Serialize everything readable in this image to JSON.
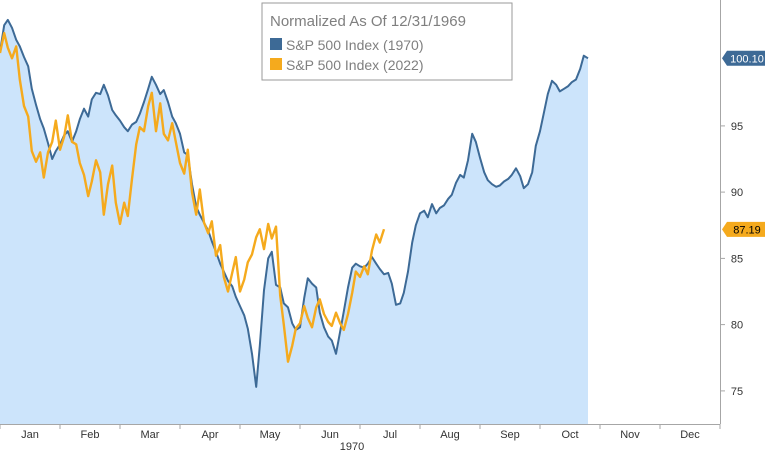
{
  "chart_data": {
    "type": "line",
    "title": "",
    "xlabel": "1970",
    "ylabel": "",
    "x_ticks": [
      "Jan",
      "Feb",
      "Mar",
      "Apr",
      "May",
      "Jun",
      "Jul",
      "Aug",
      "Sep",
      "Oct",
      "Nov",
      "Dec"
    ],
    "y_ticks": [
      75,
      80,
      85,
      90,
      95
    ],
    "xlim": [
      1,
      13
    ],
    "ylim": [
      72.5,
      104.5
    ],
    "grid": false,
    "legend": {
      "title": "Normalized As Of 12/31/1969",
      "placement": "top-center"
    },
    "series": [
      {
        "name": "S&P 500 Index (1970)",
        "color": "#3d6a96",
        "fill": "#cce4fb",
        "end_label": "100.10",
        "points": [
          [
            1.0,
            100.6
          ],
          [
            1.07,
            102.6
          ],
          [
            1.13,
            103.0
          ],
          [
            1.2,
            102.4
          ],
          [
            1.27,
            101.5
          ],
          [
            1.33,
            101.0
          ],
          [
            1.4,
            100.2
          ],
          [
            1.47,
            99.5
          ],
          [
            1.53,
            97.8
          ],
          [
            1.6,
            96.6
          ],
          [
            1.67,
            95.5
          ],
          [
            1.73,
            94.8
          ],
          [
            1.8,
            93.7
          ],
          [
            1.87,
            92.5
          ],
          [
            1.93,
            93.1
          ],
          [
            2.0,
            93.6
          ],
          [
            2.07,
            94.3
          ],
          [
            2.13,
            94.6
          ],
          [
            2.2,
            93.8
          ],
          [
            2.27,
            94.6
          ],
          [
            2.33,
            95.5
          ],
          [
            2.4,
            96.3
          ],
          [
            2.47,
            95.7
          ],
          [
            2.53,
            97.0
          ],
          [
            2.6,
            97.5
          ],
          [
            2.67,
            97.4
          ],
          [
            2.73,
            98.1
          ],
          [
            2.8,
            97.3
          ],
          [
            2.87,
            96.2
          ],
          [
            2.93,
            95.8
          ],
          [
            3.0,
            95.4
          ],
          [
            3.07,
            94.9
          ],
          [
            3.13,
            94.6
          ],
          [
            3.2,
            95.1
          ],
          [
            3.27,
            95.3
          ],
          [
            3.33,
            95.9
          ],
          [
            3.4,
            96.8
          ],
          [
            3.47,
            97.8
          ],
          [
            3.53,
            98.7
          ],
          [
            3.6,
            98.1
          ],
          [
            3.67,
            97.4
          ],
          [
            3.73,
            97.7
          ],
          [
            3.8,
            96.8
          ],
          [
            3.87,
            95.7
          ],
          [
            3.93,
            95.2
          ],
          [
            4.0,
            94.4
          ],
          [
            4.07,
            93.0
          ],
          [
            4.13,
            92.8
          ],
          [
            4.2,
            90.6
          ],
          [
            4.27,
            88.9
          ],
          [
            4.33,
            88.3
          ],
          [
            4.4,
            87.7
          ],
          [
            4.47,
            87.1
          ],
          [
            4.53,
            86.3
          ],
          [
            4.6,
            85.5
          ],
          [
            4.67,
            84.6
          ],
          [
            4.73,
            84.0
          ],
          [
            4.8,
            83.3
          ],
          [
            4.87,
            82.9
          ],
          [
            4.93,
            82.1
          ],
          [
            5.0,
            81.4
          ],
          [
            5.07,
            80.7
          ],
          [
            5.13,
            79.7
          ],
          [
            5.2,
            77.8
          ],
          [
            5.27,
            75.3
          ],
          [
            5.33,
            78.4
          ],
          [
            5.4,
            82.6
          ],
          [
            5.47,
            85.0
          ],
          [
            5.53,
            85.5
          ],
          [
            5.6,
            83.0
          ],
          [
            5.67,
            82.8
          ],
          [
            5.73,
            81.6
          ],
          [
            5.8,
            81.3
          ],
          [
            5.87,
            80.1
          ],
          [
            5.93,
            79.6
          ],
          [
            6.0,
            79.8
          ],
          [
            6.07,
            82.0
          ],
          [
            6.13,
            83.5
          ],
          [
            6.2,
            83.1
          ],
          [
            6.27,
            82.8
          ],
          [
            6.33,
            80.9
          ],
          [
            6.4,
            79.8
          ],
          [
            6.47,
            79.1
          ],
          [
            6.53,
            78.8
          ],
          [
            6.6,
            77.8
          ],
          [
            6.67,
            79.5
          ],
          [
            6.73,
            81.0
          ],
          [
            6.8,
            82.8
          ],
          [
            6.87,
            84.3
          ],
          [
            6.93,
            84.6
          ],
          [
            7.0,
            84.4
          ],
          [
            7.07,
            84.3
          ],
          [
            7.13,
            84.6
          ],
          [
            7.2,
            85.1
          ],
          [
            7.27,
            84.6
          ],
          [
            7.33,
            84.2
          ],
          [
            7.4,
            83.8
          ],
          [
            7.47,
            83.9
          ],
          [
            7.53,
            83.1
          ],
          [
            7.6,
            81.5
          ],
          [
            7.67,
            81.6
          ],
          [
            7.73,
            82.4
          ],
          [
            7.8,
            84.0
          ],
          [
            7.87,
            86.2
          ],
          [
            7.93,
            87.5
          ],
          [
            8.0,
            88.4
          ],
          [
            8.07,
            88.6
          ],
          [
            8.13,
            88.1
          ],
          [
            8.2,
            89.1
          ],
          [
            8.27,
            88.4
          ],
          [
            8.33,
            88.8
          ],
          [
            8.4,
            89.0
          ],
          [
            8.47,
            89.5
          ],
          [
            8.53,
            89.8
          ],
          [
            8.6,
            90.7
          ],
          [
            8.67,
            91.3
          ],
          [
            8.73,
            91.1
          ],
          [
            8.8,
            92.4
          ],
          [
            8.87,
            94.4
          ],
          [
            8.93,
            93.8
          ],
          [
            9.0,
            92.6
          ],
          [
            9.07,
            91.5
          ],
          [
            9.13,
            90.9
          ],
          [
            9.2,
            90.6
          ],
          [
            9.27,
            90.4
          ],
          [
            9.33,
            90.5
          ],
          [
            9.4,
            90.8
          ],
          [
            9.47,
            91.0
          ],
          [
            9.53,
            91.3
          ],
          [
            9.6,
            91.8
          ],
          [
            9.67,
            91.2
          ],
          [
            9.73,
            90.3
          ],
          [
            9.8,
            90.6
          ],
          [
            9.87,
            91.5
          ],
          [
            9.93,
            93.5
          ],
          [
            10.0,
            94.6
          ],
          [
            10.07,
            96.1
          ],
          [
            10.13,
            97.4
          ],
          [
            10.2,
            98.4
          ],
          [
            10.27,
            98.1
          ],
          [
            10.33,
            97.6
          ],
          [
            10.4,
            97.8
          ],
          [
            10.47,
            98.0
          ],
          [
            10.53,
            98.3
          ],
          [
            10.6,
            98.5
          ],
          [
            10.67,
            99.3
          ],
          [
            10.73,
            100.3
          ],
          [
            10.8,
            100.1
          ]
        ]
      },
      {
        "name": "S&P 500 Index (2022)",
        "color": "#f5aa1d",
        "end_label": "87.19",
        "points": [
          [
            1.0,
            100.5
          ],
          [
            1.07,
            102.0
          ],
          [
            1.13,
            100.9
          ],
          [
            1.2,
            100.1
          ],
          [
            1.27,
            101.0
          ],
          [
            1.33,
            98.5
          ],
          [
            1.4,
            96.5
          ],
          [
            1.47,
            95.7
          ],
          [
            1.53,
            93.1
          ],
          [
            1.6,
            92.3
          ],
          [
            1.67,
            93.0
          ],
          [
            1.73,
            91.1
          ],
          [
            1.8,
            93.0
          ],
          [
            1.87,
            93.8
          ],
          [
            1.93,
            95.4
          ],
          [
            2.0,
            93.2
          ],
          [
            2.07,
            94.2
          ],
          [
            2.13,
            95.8
          ],
          [
            2.2,
            93.8
          ],
          [
            2.27,
            93.6
          ],
          [
            2.33,
            92.2
          ],
          [
            2.4,
            91.3
          ],
          [
            2.47,
            89.7
          ],
          [
            2.53,
            90.8
          ],
          [
            2.6,
            92.4
          ],
          [
            2.67,
            91.5
          ],
          [
            2.73,
            88.3
          ],
          [
            2.8,
            90.6
          ],
          [
            2.87,
            92.0
          ],
          [
            2.93,
            89.2
          ],
          [
            3.0,
            87.6
          ],
          [
            3.07,
            89.2
          ],
          [
            3.13,
            88.2
          ],
          [
            3.2,
            91.0
          ],
          [
            3.27,
            93.6
          ],
          [
            3.33,
            94.9
          ],
          [
            3.4,
            94.6
          ],
          [
            3.47,
            96.5
          ],
          [
            3.53,
            97.5
          ],
          [
            3.6,
            94.6
          ],
          [
            3.67,
            96.7
          ],
          [
            3.73,
            94.4
          ],
          [
            3.8,
            93.9
          ],
          [
            3.87,
            95.2
          ],
          [
            3.93,
            93.8
          ],
          [
            4.0,
            92.2
          ],
          [
            4.07,
            91.4
          ],
          [
            4.13,
            93.2
          ],
          [
            4.2,
            90.0
          ],
          [
            4.27,
            88.3
          ],
          [
            4.33,
            90.2
          ],
          [
            4.4,
            87.7
          ],
          [
            4.47,
            86.9
          ],
          [
            4.53,
            87.8
          ],
          [
            4.6,
            85.2
          ],
          [
            4.67,
            86.0
          ],
          [
            4.73,
            83.6
          ],
          [
            4.8,
            82.5
          ],
          [
            4.87,
            83.9
          ],
          [
            4.93,
            85.1
          ],
          [
            5.0,
            82.5
          ],
          [
            5.07,
            83.4
          ],
          [
            5.13,
            84.7
          ],
          [
            5.2,
            85.3
          ],
          [
            5.27,
            86.6
          ],
          [
            5.33,
            87.2
          ],
          [
            5.4,
            85.7
          ],
          [
            5.47,
            87.6
          ],
          [
            5.53,
            86.5
          ],
          [
            5.6,
            87.4
          ],
          [
            5.67,
            82.2
          ],
          [
            5.73,
            80.0
          ],
          [
            5.8,
            77.2
          ],
          [
            5.87,
            78.4
          ],
          [
            5.93,
            79.7
          ],
          [
            6.0,
            80.1
          ],
          [
            6.07,
            81.4
          ],
          [
            6.13,
            80.5
          ],
          [
            6.2,
            79.8
          ],
          [
            6.27,
            81.3
          ],
          [
            6.33,
            81.9
          ],
          [
            6.4,
            80.8
          ],
          [
            6.47,
            80.2
          ],
          [
            6.53,
            79.9
          ],
          [
            6.6,
            80.9
          ],
          [
            6.67,
            80.1
          ],
          [
            6.73,
            79.6
          ],
          [
            6.8,
            80.8
          ],
          [
            6.87,
            82.4
          ],
          [
            6.93,
            84.0
          ],
          [
            7.0,
            83.6
          ],
          [
            7.07,
            84.4
          ],
          [
            7.13,
            83.8
          ],
          [
            7.2,
            85.6
          ],
          [
            7.27,
            86.8
          ],
          [
            7.33,
            86.2
          ],
          [
            7.4,
            87.2
          ]
        ]
      }
    ]
  }
}
